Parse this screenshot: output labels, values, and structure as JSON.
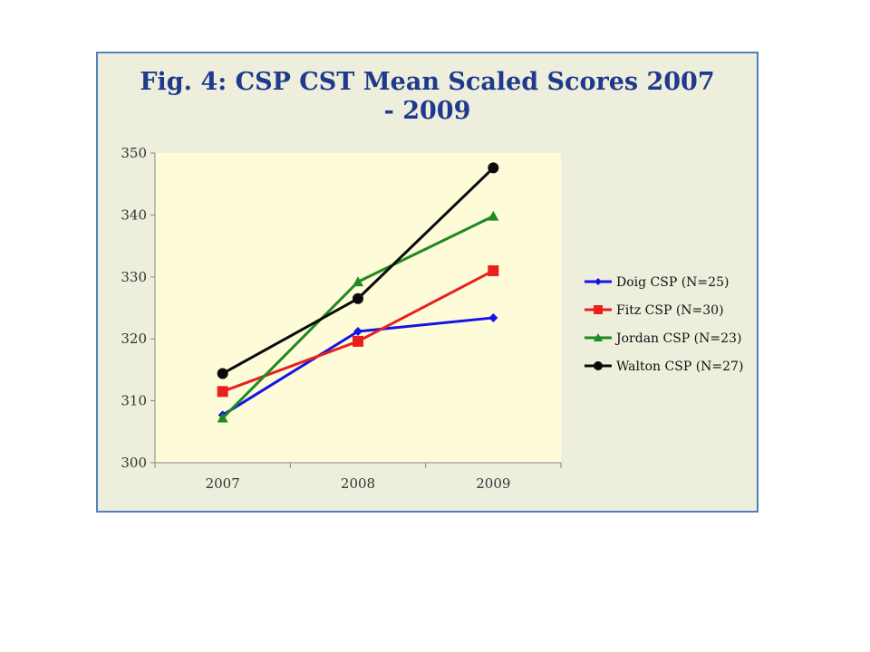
{
  "chart_data": {
    "type": "line",
    "title_line1": "Fig. 4:  CSP CST Mean Scaled Scores 2007",
    "title_line2": "- 2009",
    "xlabel": "",
    "ylabel": "",
    "categories": [
      "2007",
      "2008",
      "2009"
    ],
    "ylim": [
      300,
      350
    ],
    "yticks": [
      300,
      310,
      320,
      330,
      340,
      350
    ],
    "grid": false,
    "legend_position": "right",
    "plot_background": "#fdfbd8",
    "series": [
      {
        "name": "Doig CSP (N=25)",
        "values": [
          307.7,
          321.2,
          323.4
        ],
        "color": "#1515e6",
        "marker": "diamond"
      },
      {
        "name": "Fitz CSP (N=30)",
        "values": [
          311.5,
          319.6,
          331.0
        ],
        "color": "#e8201e",
        "marker": "square"
      },
      {
        "name": "Jordan CSP (N=23)",
        "values": [
          307.2,
          329.2,
          339.8
        ],
        "color": "#1f8a1f",
        "marker": "triangle"
      },
      {
        "name": "Walton CSP (N=27)",
        "values": [
          314.4,
          326.5,
          347.6
        ],
        "color": "#0a0a0a",
        "marker": "circle"
      }
    ]
  }
}
